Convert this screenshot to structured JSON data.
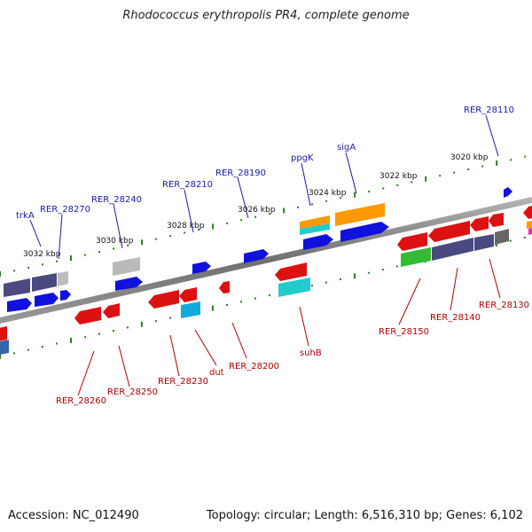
{
  "title": "Rhodococcus erythropolis PR4, complete genome",
  "accession_text": "Accession: NC_012490",
  "summary_text": "Topology: circular; Length: 6,516,310 bp; Genes: 6,102",
  "colors": {
    "forward_label": "#1a1aa8",
    "reverse_label": "#b00000",
    "backbone": "#7a7a7a",
    "scale_ticks": "#2e7d1e"
  },
  "scale_labels": [
    "3032 kbp",
    "3030 kbp",
    "3028 kbp",
    "3026 kbp",
    "3024 kbp",
    "3022 kbp",
    "3020 kbp"
  ],
  "forward_labels": [
    "trkA",
    "RER_28270",
    "RER_28240",
    "RER_28210",
    "RER_28190",
    "ppgK",
    "sigA",
    "RER_28110"
  ],
  "reverse_labels": [
    "RER_28260",
    "RER_28250",
    "RER_28230",
    "dut",
    "RER_28200",
    "suhB",
    "RER_28150",
    "RER_28140",
    "RER_28130"
  ]
}
